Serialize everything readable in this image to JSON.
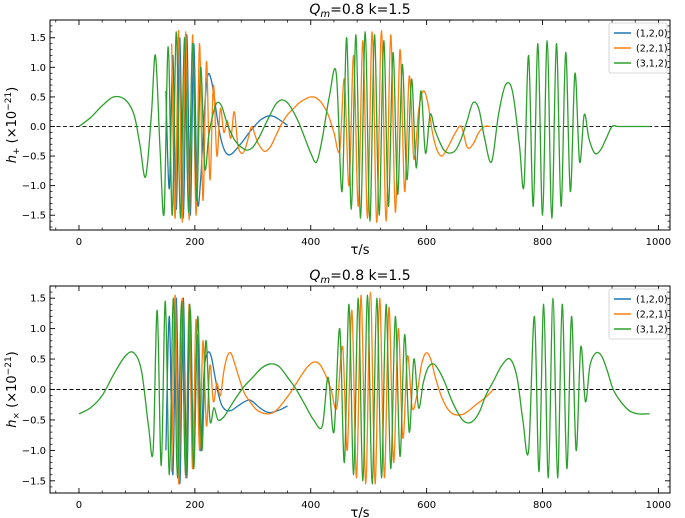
{
  "chart_data": [
    {
      "type": "line",
      "title": "Q_m=0.8 k=1.5",
      "title_main": "Q",
      "title_sub": "m",
      "title_rest": "=0.8 k=1.5",
      "xlabel": "τ/s",
      "ylabel_main": "h",
      "ylabel_sub": "+",
      "ylabel_rest": " (×10",
      "ylabel_exp": "−21",
      "ylabel_close": ")",
      "xlim": [
        -50,
        1020
      ],
      "ylim": [
        -1.75,
        1.8
      ],
      "xticks": [
        0,
        200,
        400,
        600,
        800,
        1000
      ],
      "yticks": [
        -1.5,
        -1.0,
        -0.5,
        0.0,
        0.5,
        1.0,
        1.5
      ],
      "ytick_labels": [
        "−1.5",
        "−1.0",
        "−0.5",
        "0.0",
        "0.5",
        "1.0",
        "1.5"
      ],
      "zero_line": "dashed",
      "legend_position": "top-right",
      "series": [
        {
          "name": "(1,2,0)",
          "color": "#1f77b4",
          "x": [
            150,
            156,
            162,
            168,
            174,
            180,
            186,
            192,
            198,
            204,
            210,
            216,
            222,
            228,
            234,
            240,
            246,
            252,
            258,
            264,
            270,
            276,
            282,
            288,
            294,
            300,
            306,
            312,
            318,
            324,
            330,
            336,
            342,
            348,
            354,
            360
          ],
          "y": [
            0.6,
            -1.05,
            1.2,
            -1.4,
            1.5,
            -1.55,
            1.55,
            -1.5,
            1.4,
            -1.2,
            -0.9,
            0.2,
            0.85,
            0.8,
            0.45,
            0.05,
            -0.25,
            -0.42,
            -0.48,
            -0.46,
            -0.4,
            -0.33,
            -0.26,
            -0.18,
            -0.1,
            -0.03,
            0.04,
            0.1,
            0.14,
            0.17,
            0.18,
            0.17,
            0.14,
            0.1,
            0.06,
            0.02
          ]
        },
        {
          "name": "(2,2,1)",
          "color": "#ff7f0e",
          "x": [
            160,
            166,
            172,
            178,
            184,
            190,
            196,
            202,
            208,
            214,
            220,
            226,
            232,
            238,
            244,
            250,
            256,
            262,
            268,
            274,
            280,
            286,
            292,
            298,
            304,
            310,
            320,
            330,
            340,
            350,
            360,
            370,
            380,
            390,
            400,
            410,
            420,
            430,
            440,
            450,
            458,
            466,
            474,
            482,
            490,
            498,
            506,
            514,
            522,
            530,
            538,
            546,
            554,
            562,
            570,
            578,
            586,
            594,
            602,
            610,
            618,
            626,
            634,
            642,
            650,
            660,
            670,
            680,
            690,
            700,
            710
          ],
          "y": [
            1.4,
            -1.55,
            1.62,
            -1.62,
            1.6,
            -1.58,
            1.55,
            -1.5,
            1.4,
            -1.25,
            1.1,
            -0.9,
            0.7,
            -0.5,
            0.3,
            -0.1,
            0.1,
            -0.2,
            0.25,
            -0.3,
            -0.45,
            -0.4,
            -0.2,
            0.0,
            -0.15,
            -0.3,
            -0.42,
            -0.35,
            -0.15,
            0.05,
            0.2,
            0.3,
            0.4,
            0.46,
            0.5,
            0.48,
            0.38,
            0.2,
            -0.1,
            -0.4,
            0.8,
            -1.0,
            1.2,
            -1.35,
            1.45,
            -1.55,
            1.6,
            -1.62,
            1.62,
            -1.6,
            1.55,
            -1.45,
            1.3,
            -1.1,
            0.85,
            -0.55,
            0.25,
            0.6,
            0.4,
            -0.1,
            -0.4,
            -0.5,
            -0.4,
            -0.25,
            -0.1,
            0.0,
            -0.35,
            -0.3,
            -0.1,
            0.0,
            0.0
          ]
        },
        {
          "name": "(3,1,2)",
          "color": "#2ca02c",
          "x": [
            0,
            20,
            40,
            60,
            80,
            95,
            105,
            115,
            125,
            132,
            140,
            147,
            154,
            161,
            168,
            175,
            182,
            189,
            196,
            203,
            210,
            217,
            224,
            231,
            238,
            246,
            254,
            262,
            270,
            280,
            290,
            300,
            310,
            320,
            330,
            340,
            350,
            360,
            370,
            380,
            390,
            400,
            410,
            420,
            432,
            444,
            454,
            462,
            470,
            478,
            486,
            494,
            502,
            510,
            518,
            526,
            534,
            542,
            550,
            558,
            566,
            574,
            582,
            590,
            598,
            606,
            614,
            622,
            630,
            640,
            650,
            660,
            670,
            680,
            690,
            700,
            712,
            724,
            736,
            748,
            760,
            768,
            776,
            784,
            792,
            800,
            808,
            816,
            824,
            832,
            840,
            848,
            856,
            864,
            872,
            880,
            890,
            900,
            910,
            920,
            930,
            945,
            960,
            975,
            985
          ],
          "y": [
            0.0,
            0.15,
            0.35,
            0.5,
            0.45,
            0.2,
            -0.3,
            -0.85,
            0.2,
            1.2,
            -0.4,
            -1.45,
            1.35,
            -1.5,
            1.6,
            -1.55,
            1.5,
            -1.45,
            1.4,
            -1.25,
            1.0,
            -0.7,
            -0.15,
            0.2,
            0.4,
            0.35,
            0.1,
            -0.1,
            -0.25,
            -0.35,
            -0.4,
            -0.35,
            -0.2,
            0.0,
            0.2,
            0.38,
            0.45,
            0.4,
            0.25,
            0.05,
            -0.2,
            -0.45,
            -0.6,
            -0.2,
            0.5,
            0.9,
            -1.1,
            1.5,
            -1.4,
            1.55,
            -1.55,
            1.6,
            -1.6,
            1.55,
            -1.5,
            1.45,
            -1.35,
            1.25,
            -1.15,
            1.05,
            -0.9,
            0.8,
            -0.7,
            0.6,
            -0.45,
            0.2,
            -0.05,
            -0.25,
            -0.4,
            -0.45,
            -0.4,
            -0.2,
            0.1,
            0.4,
            0.3,
            -0.2,
            -0.6,
            0.2,
            0.7,
            0.6,
            -0.3,
            -1.0,
            1.2,
            -1.35,
            1.4,
            -1.5,
            1.45,
            -1.55,
            1.4,
            -1.35,
            1.25,
            -1.1,
            0.9,
            -0.6,
            0.2,
            -0.2,
            -0.45,
            -0.4,
            -0.2,
            0.0,
            0.0,
            0.0,
            0.0,
            0.0,
            0.0
          ]
        }
      ]
    },
    {
      "type": "line",
      "title": "Q_m=0.8 k=1.5",
      "title_main": "Q",
      "title_sub": "m",
      "title_rest": "=0.8 k=1.5",
      "xlabel": "τ/s",
      "ylabel_main": "h",
      "ylabel_sub": "×",
      "ylabel_rest": " (×10",
      "ylabel_exp": "−21",
      "ylabel_close": ")",
      "xlim": [
        -50,
        1020
      ],
      "ylim": [
        -1.7,
        1.7
      ],
      "xticks": [
        0,
        200,
        400,
        600,
        800,
        1000
      ],
      "yticks": [
        -1.5,
        -1.0,
        -0.5,
        0.0,
        0.5,
        1.0,
        1.5
      ],
      "ytick_labels": [
        "−1.5",
        "−1.0",
        "−0.5",
        "0.0",
        "0.5",
        "1.0",
        "1.5"
      ],
      "zero_line": "dashed",
      "legend_position": "top-right",
      "series": [
        {
          "name": "(1,2,0)",
          "color": "#1f77b4",
          "x": [
            150,
            156,
            162,
            168,
            174,
            180,
            186,
            192,
            198,
            204,
            210,
            216,
            222,
            228,
            234,
            240,
            246,
            252,
            258,
            264,
            270,
            276,
            282,
            288,
            294,
            300,
            306,
            312,
            318,
            324,
            330,
            336,
            342,
            348,
            354,
            360
          ],
          "y": [
            -1.0,
            1.2,
            -1.4,
            1.5,
            -1.55,
            1.5,
            -1.45,
            1.3,
            -1.15,
            0.9,
            -1.0,
            0.3,
            0.6,
            0.55,
            0.25,
            -0.05,
            -0.25,
            -0.33,
            -0.35,
            -0.34,
            -0.3,
            -0.26,
            -0.22,
            -0.19,
            -0.17,
            -0.2,
            -0.25,
            -0.3,
            -0.34,
            -0.37,
            -0.38,
            -0.37,
            -0.35,
            -0.33,
            -0.3,
            -0.27
          ]
        },
        {
          "name": "(2,2,1)",
          "color": "#ff7f0e",
          "x": [
            160,
            166,
            172,
            178,
            184,
            190,
            196,
            202,
            208,
            214,
            220,
            226,
            232,
            238,
            244,
            250,
            256,
            262,
            268,
            276,
            285,
            295,
            305,
            315,
            325,
            335,
            345,
            355,
            365,
            375,
            385,
            395,
            405,
            415,
            425,
            435,
            445,
            455,
            463,
            471,
            479,
            487,
            495,
            503,
            511,
            519,
            527,
            535,
            543,
            551,
            559,
            567,
            575,
            583,
            591,
            599,
            607,
            615,
            625,
            635,
            645,
            655,
            665,
            675,
            685,
            695,
            705,
            715
          ],
          "y": [
            -1.35,
            1.55,
            -1.55,
            1.5,
            -1.45,
            1.4,
            -1.3,
            1.15,
            -1.0,
            0.8,
            -0.6,
            0.4,
            -0.2,
            0.1,
            -0.1,
            0.3,
            0.55,
            0.6,
            0.45,
            0.2,
            -0.05,
            -0.2,
            -0.32,
            -0.38,
            -0.4,
            -0.38,
            -0.3,
            -0.18,
            -0.05,
            0.1,
            0.25,
            0.38,
            0.45,
            0.42,
            0.25,
            0.0,
            -0.3,
            0.7,
            -1.0,
            1.3,
            -1.45,
            1.55,
            -1.55,
            1.6,
            -1.55,
            1.5,
            -1.45,
            1.35,
            -1.2,
            1.0,
            -0.8,
            0.55,
            -0.3,
            -0.1,
            0.4,
            0.6,
            0.5,
            0.2,
            -0.1,
            -0.3,
            -0.4,
            -0.42,
            -0.4,
            -0.33,
            -0.25,
            -0.18,
            -0.1,
            0.0
          ]
        },
        {
          "name": "(3,1,2)",
          "color": "#2ca02c",
          "x": [
            0,
            20,
            40,
            60,
            80,
            95,
            108,
            120,
            128,
            135,
            142,
            149,
            156,
            163,
            170,
            177,
            184,
            191,
            198,
            205,
            212,
            219,
            226,
            233,
            240,
            250,
            260,
            270,
            285,
            300,
            315,
            330,
            345,
            360,
            375,
            390,
            405,
            420,
            430,
            440,
            450,
            458,
            466,
            474,
            482,
            490,
            498,
            506,
            514,
            522,
            530,
            538,
            546,
            554,
            562,
            570,
            578,
            586,
            594,
            602,
            612,
            622,
            632,
            642,
            652,
            662,
            672,
            682,
            692,
            702,
            716,
            730,
            744,
            756,
            766,
            776,
            786,
            794,
            802,
            810,
            818,
            826,
            834,
            842,
            850,
            858,
            866,
            874,
            882,
            892,
            902,
            912,
            922,
            935,
            950,
            965,
            980,
            985
          ],
          "y": [
            -0.4,
            -0.3,
            -0.1,
            0.25,
            0.55,
            0.6,
            0.3,
            -0.6,
            -1.0,
            1.3,
            -1.25,
            1.45,
            -1.4,
            1.5,
            -1.45,
            1.45,
            -1.4,
            1.4,
            -1.3,
            1.2,
            -1.0,
            0.8,
            -0.5,
            -0.3,
            -0.5,
            -0.45,
            -0.3,
            -0.15,
            0.05,
            0.2,
            0.35,
            0.42,
            0.38,
            0.2,
            0.0,
            -0.25,
            -0.5,
            -0.6,
            0.2,
            -0.7,
            1.0,
            -1.2,
            1.4,
            -1.4,
            1.5,
            -1.5,
            1.55,
            -1.55,
            1.5,
            -1.45,
            1.4,
            -1.3,
            1.2,
            -1.1,
            0.9,
            -0.7,
            0.5,
            -0.3,
            0.1,
            0.35,
            0.42,
            0.3,
            0.1,
            -0.15,
            -0.35,
            -0.5,
            -0.55,
            -0.5,
            -0.35,
            -0.1,
            0.15,
            0.4,
            0.5,
            0.2,
            -0.5,
            -1.0,
            1.2,
            -1.35,
            1.4,
            -1.45,
            1.5,
            -1.45,
            1.4,
            -1.3,
            1.2,
            -1.0,
            0.7,
            -0.2,
            0.4,
            0.6,
            0.55,
            0.3,
            0.0,
            -0.2,
            -0.35,
            -0.4,
            -0.4,
            -0.4
          ]
        }
      ]
    }
  ]
}
